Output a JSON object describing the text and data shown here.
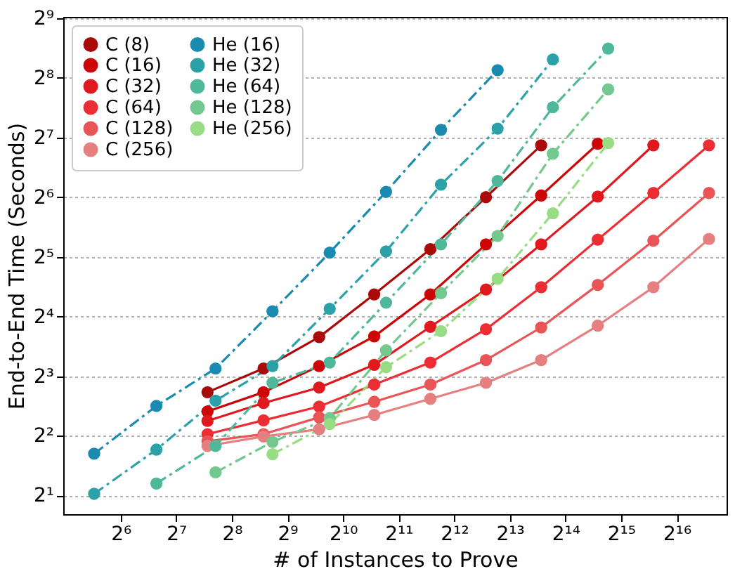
{
  "chart_data": {
    "type": "line",
    "xlabel": "# of Instances to Prove",
    "ylabel": "End-to-End Time (Seconds)",
    "log": "xy",
    "grid": "y",
    "legend": "top left",
    "marker": "circle",
    "xlim": [
      31.3,
      122000
    ],
    "ylim": [
      1.61,
      520
    ],
    "xticks": [
      {
        "value": 64,
        "label": "2⁶"
      },
      {
        "value": 128,
        "label": "2⁷"
      },
      {
        "value": 256,
        "label": "2⁸"
      },
      {
        "value": 512,
        "label": "2⁹"
      },
      {
        "value": 1024,
        "label": "2¹⁰"
      },
      {
        "value": 2048,
        "label": "2¹¹"
      },
      {
        "value": 4096,
        "label": "2¹²"
      },
      {
        "value": 8192,
        "label": "2¹³"
      },
      {
        "value": 16384,
        "label": "2¹⁴"
      },
      {
        "value": 32768,
        "label": "2¹⁵"
      },
      {
        "value": 65536,
        "label": "2¹⁶"
      }
    ],
    "yticks": [
      {
        "value": 2,
        "label": "2¹"
      },
      {
        "value": 4,
        "label": "2²"
      },
      {
        "value": 8,
        "label": "2³"
      },
      {
        "value": 16,
        "label": "2⁴"
      },
      {
        "value": 32,
        "label": "2⁵"
      },
      {
        "value": 64,
        "label": "2⁶"
      },
      {
        "value": 128,
        "label": "2⁷"
      },
      {
        "value": 256,
        "label": "2⁸"
      },
      {
        "value": 512,
        "label": "2⁹"
      }
    ],
    "series": [
      {
        "name": "C (8)",
        "color": "#aa0a0a",
        "line_style": "solid",
        "x": [
          189,
          380,
          760,
          1510,
          3040,
          6080,
          12100
        ],
        "values": [
          6.64,
          8.75,
          12.6,
          20.7,
          35.0,
          64,
          117
        ]
      },
      {
        "name": "C (16)",
        "color": "#cc0606",
        "line_style": "solid",
        "x": [
          189,
          380,
          760,
          1510,
          3040,
          6080,
          12100,
          24500
        ],
        "values": [
          5.31,
          6.64,
          9.0,
          12.7,
          20.7,
          37.0,
          65.3,
          119
        ]
      },
      {
        "name": "C (32)",
        "color": "#e0191e",
        "line_style": "solid",
        "x": [
          189,
          380,
          760,
          1510,
          3040,
          6080,
          12100,
          24500,
          49000
        ],
        "values": [
          4.76,
          5.86,
          7.01,
          9.13,
          14.2,
          21.9,
          37.0,
          64.4,
          117
        ]
      },
      {
        "name": "C (64)",
        "color": "#ec2d33",
        "line_style": "solid",
        "x": [
          189,
          380,
          760,
          1510,
          3040,
          6080,
          12100,
          24500,
          49000,
          98000
        ],
        "values": [
          4.08,
          4.79,
          5.62,
          7.26,
          9.38,
          13.8,
          22.5,
          39.1,
          67.2,
          117
        ]
      },
      {
        "name": "C (128)",
        "color": "#e95457",
        "line_style": "solid",
        "x": [
          189,
          380,
          760,
          1510,
          3040,
          6080,
          12100,
          24500,
          49000,
          98000
        ],
        "values": [
          3.76,
          4.08,
          4.96,
          5.94,
          7.26,
          9.65,
          14.1,
          23.1,
          38.6,
          67.2
        ]
      },
      {
        "name": "C (256)",
        "color": "#e57f80",
        "line_style": "solid",
        "x": [
          189,
          380,
          760,
          1510,
          3040,
          6080,
          12100,
          24500,
          49000,
          98000
        ],
        "values": [
          3.56,
          3.97,
          4.32,
          5.1,
          6.15,
          7.41,
          9.65,
          14.4,
          22.5,
          39.4
        ]
      },
      {
        "name": "He (16)",
        "color": "#1a8bb0",
        "line_style": "dashed",
        "x": [
          46,
          100,
          209,
          425,
          867,
          1750,
          3470,
          7030
        ],
        "values": [
          3.25,
          5.66,
          8.75,
          17.0,
          33.6,
          68.1,
          140,
          280
        ]
      },
      {
        "name": "He (32)",
        "color": "#2ba1a8",
        "line_style": "dashed",
        "x": [
          46,
          100,
          209,
          425,
          867,
          1750,
          3470,
          7030,
          14000
        ],
        "values": [
          2.04,
          3.41,
          6.02,
          9.0,
          17.5,
          34.1,
          74.0,
          142,
          317
        ]
      },
      {
        "name": "He (64)",
        "color": "#4db89a",
        "line_style": "dashed",
        "x": [
          100,
          209,
          425,
          867,
          1750,
          3470,
          7030,
          14000,
          27900
        ],
        "values": [
          2.3,
          3.56,
          7.41,
          9.38,
          18.8,
          37.0,
          77.2,
          182,
          360
        ]
      },
      {
        "name": "He (128)",
        "color": "#72c88e",
        "line_style": "dashed",
        "x": [
          209,
          425,
          867,
          1750,
          3470,
          7030,
          14000,
          27900
        ],
        "values": [
          2.62,
          3.73,
          4.92,
          10.8,
          21.0,
          40.8,
          106,
          224
        ]
      },
      {
        "name": "He (256)",
        "color": "#98dc84",
        "line_style": "dashed",
        "x": [
          425,
          867,
          1750,
          3470,
          7030,
          14000,
          27900
        ],
        "values": [
          3.23,
          4.59,
          8.88,
          13.5,
          24.8,
          53.1,
          120
        ]
      }
    ]
  }
}
